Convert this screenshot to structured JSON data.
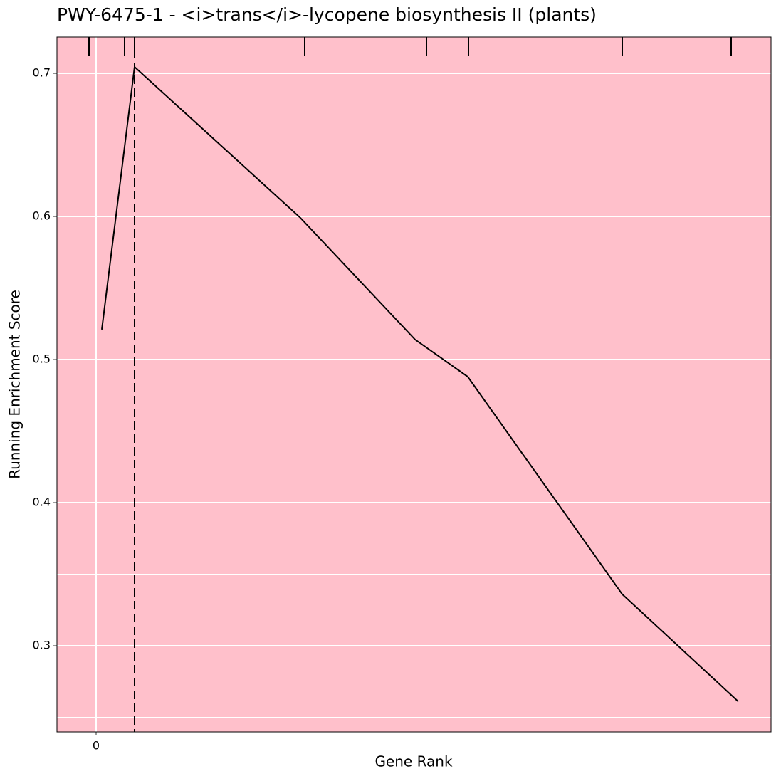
{
  "chart_data": {
    "type": "line",
    "title": "PWY-6475-1 - <i>trans</i>-lycopene biosynthesis II (plants)",
    "xlabel": "Gene Rank",
    "ylabel": "Running Enrichment Score",
    "x": [
      160,
      1080,
      5740,
      8960,
      10440,
      14780,
      18040
    ],
    "series": [
      {
        "color": "#000000",
        "values": [
          0.521,
          0.7045,
          0.599,
          0.514,
          0.488,
          0.336,
          0.261
        ]
      }
    ],
    "rug": [
      -200,
      800,
      1080,
      5860,
      9280,
      10460,
      14780,
      17840
    ],
    "vline": 1080,
    "xlim": [
      -1100,
      18960
    ],
    "xticks": [
      0
    ],
    "ylim": [
      0.2398,
      0.7254
    ],
    "yticks": [
      0.3,
      0.4,
      0.5,
      0.6,
      0.7
    ],
    "minor_grid_y": [
      0.25,
      0.35,
      0.45,
      0.55,
      0.65
    ],
    "grid": true,
    "background": "#FFC0CB"
  }
}
